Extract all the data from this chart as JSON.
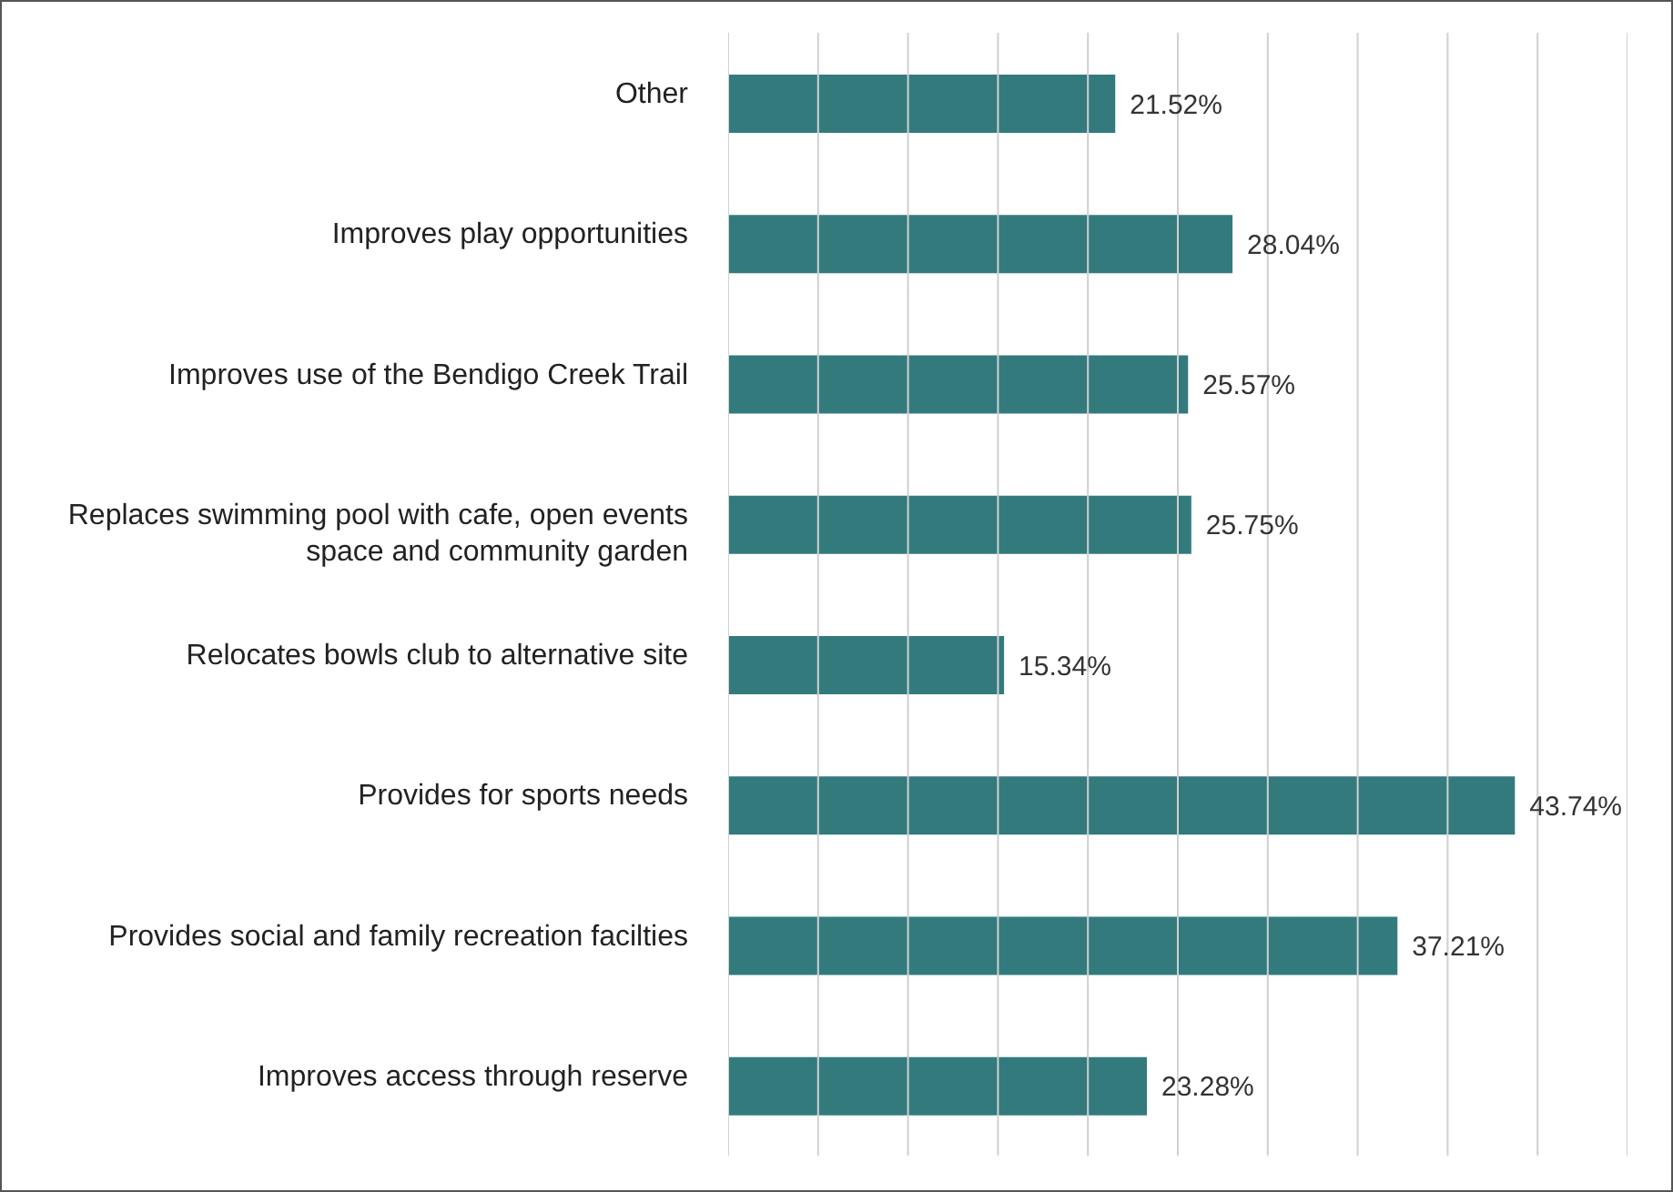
{
  "chart_data": {
    "type": "bar",
    "orientation": "horizontal",
    "categories": [
      "Other",
      "Improves play opportunities",
      "Improves use of the Bendigo Creek Trail",
      "Replaces swimming pool with cafe, open events space and community garden",
      "Relocates bowls club to alternative site",
      "Provides for sports needs",
      "Provides social and family recreation facilties",
      "Improves access through reserve"
    ],
    "values": [
      21.52,
      28.04,
      25.57,
      25.75,
      15.34,
      43.74,
      37.21,
      23.28
    ],
    "value_labels": [
      "21.52%",
      "28.04%",
      "25.57%",
      "25.75%",
      "15.34%",
      "43.74%",
      "37.21%",
      "23.28%"
    ],
    "color": "#337a7d",
    "xlim": [
      0,
      50
    ],
    "xticks": [
      {
        "value": 0,
        "label": null
      },
      {
        "value": 5,
        "label": null
      },
      {
        "value": 10,
        "label": null
      },
      {
        "value": 15,
        "label": null
      },
      {
        "value": 20,
        "label": null
      },
      {
        "value": 25,
        "label": null
      },
      {
        "value": 30,
        "label": null
      },
      {
        "value": 35,
        "label": null
      },
      {
        "value": 40,
        "label": null
      },
      {
        "value": 45,
        "label": null
      },
      {
        "value": 50,
        "label": null
      }
    ],
    "grid": "x",
    "tick_labels": "y",
    "legend": false
  }
}
